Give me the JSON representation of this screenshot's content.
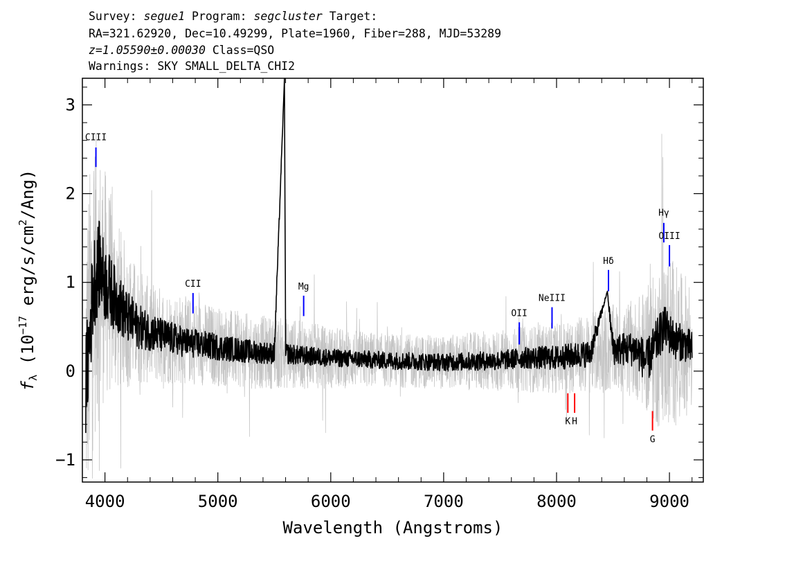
{
  "header": {
    "survey_label": "Survey:",
    "survey": "segue1",
    "program_label": "Program:",
    "program": "segcluster",
    "target_label": "Target:",
    "line2": "RA=321.62920, Dec=10.49299, Plate=1960, Fiber=288, MJD=53289",
    "redshift": "z=1.05590±0.00030",
    "class_text": "Class=QSO",
    "warnings": "Warnings: SKY SMALL_DELTA_CHI2"
  },
  "chart_data": {
    "type": "line",
    "xlabel": "Wavelength (Angstroms)",
    "ylabel_parts": [
      "f",
      "λ",
      " (10",
      "−17",
      " erg/s/cm",
      "2",
      "/Ang)"
    ],
    "xlim": [
      3800,
      9300
    ],
    "ylim": [
      -1.25,
      3.3
    ],
    "x_ticks": [
      4000,
      5000,
      6000,
      7000,
      8000,
      9000
    ],
    "y_ticks": [
      -1,
      0,
      1,
      2,
      3
    ],
    "x_tick_labels": [
      "4000",
      "5000",
      "6000",
      "7000",
      "8000",
      "9000"
    ],
    "y_tick_labels": [
      "−1",
      "0",
      "1",
      "2",
      "3"
    ],
    "grid": false,
    "series": [
      {
        "color": "#c4c4c4",
        "x": [
          3830,
          3900,
          4000,
          4100,
          4200,
          4300,
          4400,
          4500,
          4700,
          5000,
          5300,
          5600,
          6000,
          6500,
          7000,
          7500,
          8000,
          8300,
          8500,
          8700,
          8900,
          9000,
          9100,
          9200
        ],
        "y": [
          0.0,
          1.0,
          1.0,
          0.75,
          0.6,
          0.5,
          0.45,
          0.4,
          0.35,
          0.28,
          0.22,
          0.2,
          0.15,
          0.12,
          0.1,
          0.12,
          0.15,
          0.2,
          0.25,
          0.25,
          0.25,
          0.35,
          0.3,
          0.3
        ],
        "noise_amplitude": [
          1.8,
          1.8,
          1.3,
          1.0,
          0.8,
          0.65,
          0.6,
          0.55,
          0.5,
          0.45,
          0.42,
          0.4,
          0.35,
          0.3,
          0.3,
          0.35,
          0.4,
          0.45,
          0.5,
          0.55,
          0.9,
          1.0,
          0.8,
          0.8
        ]
      },
      {
        "color": "#000000",
        "x": [
          3830,
          3900,
          3950,
          4000,
          4050,
          4100,
          4200,
          4300,
          4400,
          4500,
          4700,
          5000,
          5300,
          5500,
          5590,
          5600,
          5700,
          6000,
          6500,
          7000,
          7500,
          7700,
          8000,
          8300,
          8450,
          8500,
          8700,
          8800,
          8950,
          9050,
          9150,
          9200
        ],
        "y": [
          -0.2,
          1.0,
          1.2,
          1.0,
          0.9,
          0.8,
          0.6,
          0.5,
          0.45,
          0.4,
          0.33,
          0.27,
          0.22,
          0.2,
          3.3,
          0.2,
          0.18,
          0.15,
          0.12,
          0.1,
          0.12,
          0.15,
          0.15,
          0.2,
          0.9,
          0.25,
          0.25,
          0.1,
          0.5,
          0.35,
          0.3,
          0.25
        ],
        "noise_amplitude": [
          0.6,
          0.55,
          0.5,
          0.45,
          0.4,
          0.35,
          0.3,
          0.25,
          0.22,
          0.2,
          0.17,
          0.15,
          0.13,
          0.12,
          0.0,
          0.12,
          0.11,
          0.1,
          0.1,
          0.1,
          0.11,
          0.12,
          0.14,
          0.15,
          0.0,
          0.18,
          0.2,
          0.25,
          0.25,
          0.22,
          0.2,
          0.2
        ]
      }
    ],
    "line_markers": [
      {
        "label": "CIII",
        "x": 3920,
        "y0": 2.3,
        "y1": 2.52,
        "color": "#0000ff",
        "label_y": 2.6
      },
      {
        "label": "CII",
        "x": 4780,
        "y0": 0.65,
        "y1": 0.88,
        "color": "#0000ff",
        "label_y": 0.95
      },
      {
        "label": "Mg",
        "x": 5760,
        "y0": 0.62,
        "y1": 0.85,
        "color": "#0000ff",
        "label_y": 0.92
      },
      {
        "label": "OII",
        "x": 7670,
        "y0": 0.3,
        "y1": 0.55,
        "color": "#0000ff",
        "label_y": 0.62
      },
      {
        "label": "NeIII",
        "x": 7960,
        "y0": 0.48,
        "y1": 0.72,
        "color": "#0000ff",
        "label_y": 0.79
      },
      {
        "label": "Hδ",
        "x": 8460,
        "y0": 0.9,
        "y1": 1.14,
        "color": "#0000ff",
        "label_y": 1.21
      },
      {
        "label": "Hγ",
        "x": 8950,
        "y0": 1.45,
        "y1": 1.67,
        "color": "#0000ff",
        "label_y": 1.75
      },
      {
        "label": "OIII",
        "x": 9000,
        "y0": 1.18,
        "y1": 1.42,
        "color": "#0000ff",
        "label_y": 1.49
      },
      {
        "label": "K",
        "x": 8100,
        "y0": -0.47,
        "y1": -0.25,
        "color": "#ff0000",
        "label_y": -0.6
      },
      {
        "label": "H",
        "x": 8160,
        "y0": -0.47,
        "y1": -0.25,
        "color": "#ff0000",
        "label_y": -0.6
      },
      {
        "label": "G",
        "x": 8850,
        "y0": -0.67,
        "y1": -0.45,
        "color": "#ff0000",
        "label_y": -0.8
      }
    ]
  }
}
